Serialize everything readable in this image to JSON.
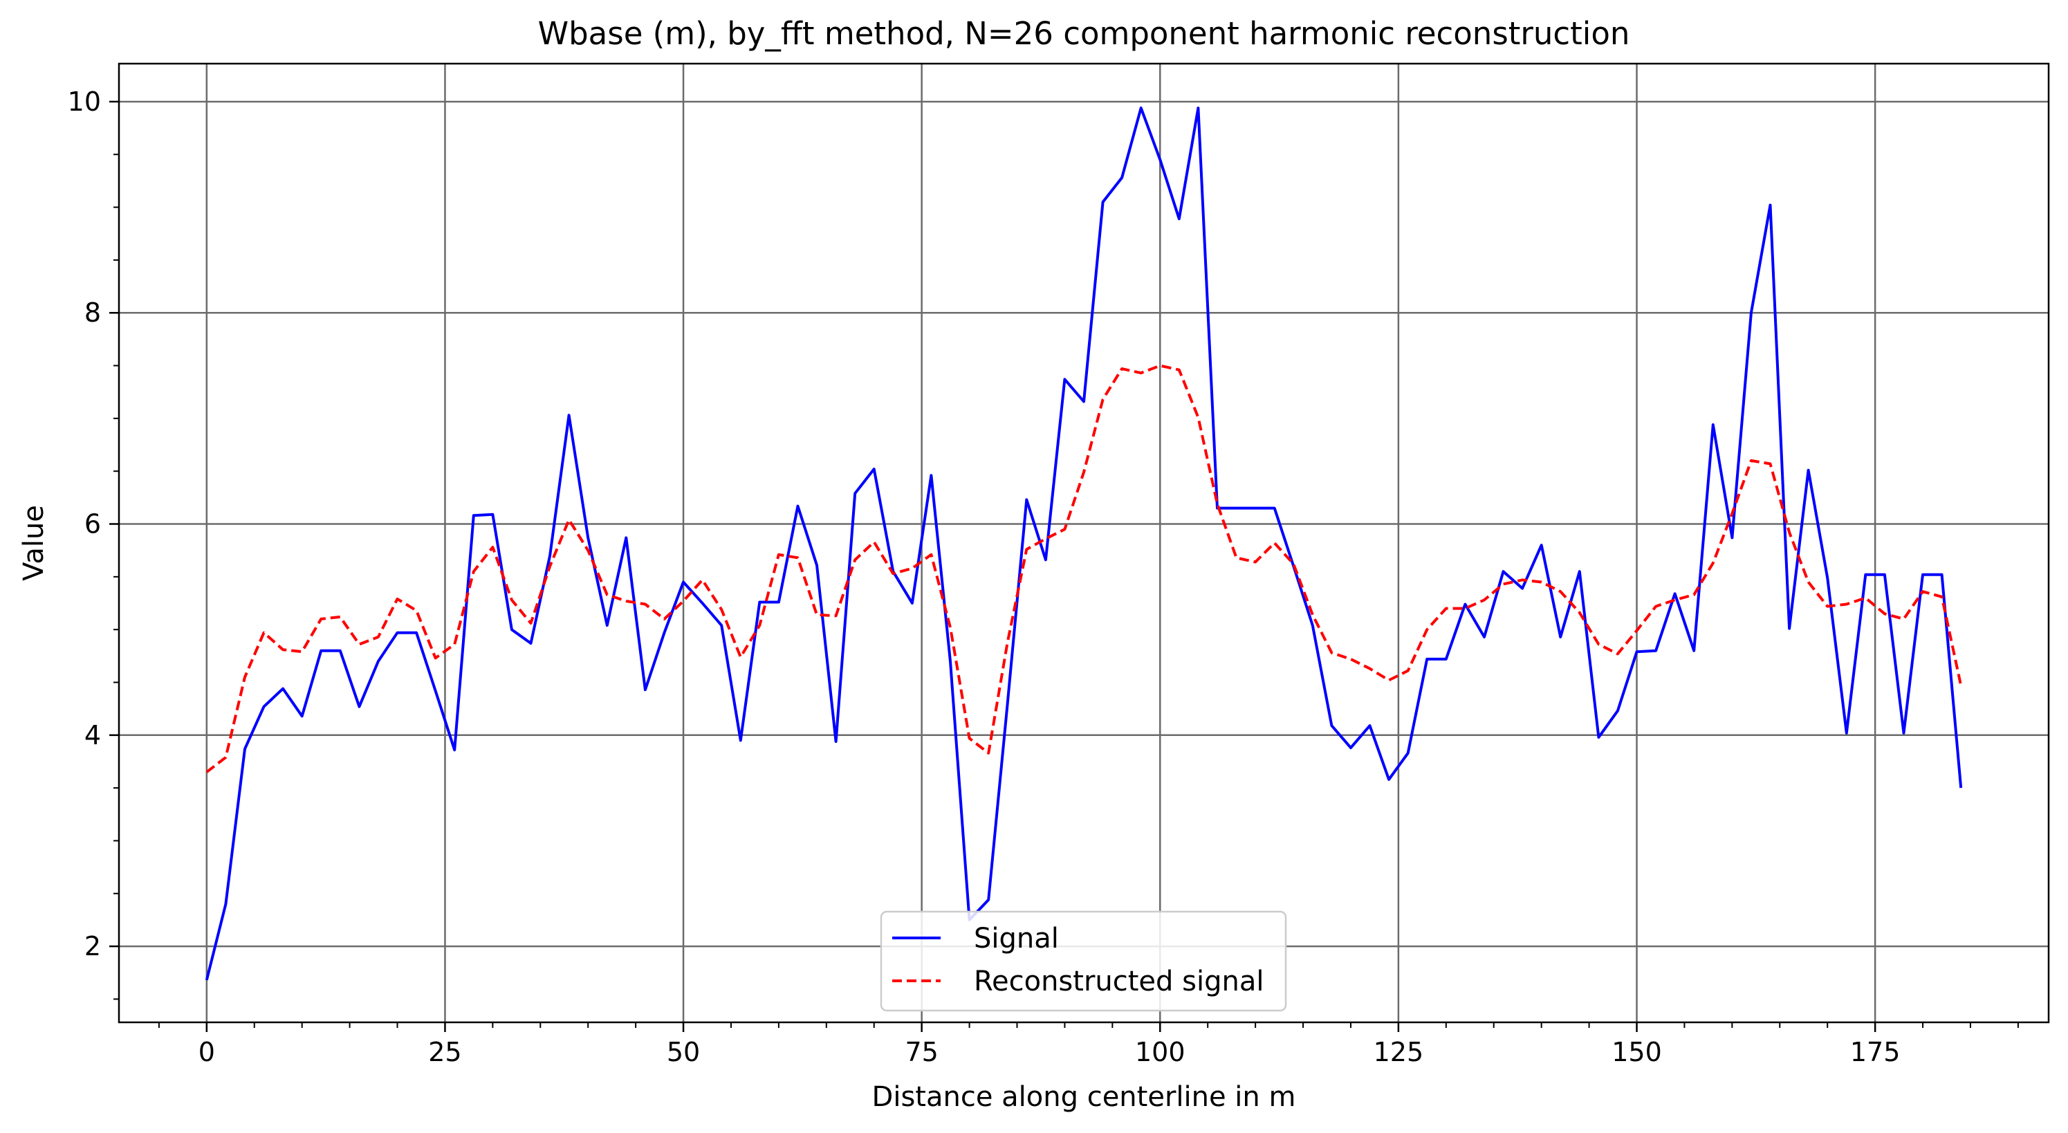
{
  "chart_data": {
    "type": "line",
    "title": "Wbase (m), by_fft method, N=26 component harmonic reconstruction",
    "xlabel": "Distance along centerline in m",
    "ylabel": "Value",
    "xlim": [
      -9.2,
      193.2
    ],
    "ylim": [
      1.28,
      10.36
    ],
    "xticks": [
      0,
      25,
      50,
      75,
      100,
      125,
      150,
      175
    ],
    "xtick_labels": [
      "0",
      "25",
      "50",
      "75",
      "100",
      "125",
      "150",
      "175"
    ],
    "yticks": [
      2,
      4,
      6,
      8,
      10
    ],
    "ytick_labels": [
      "2",
      "4",
      "6",
      "8",
      "10"
    ],
    "x_minor_step": 5,
    "y_minor_step": 0.5,
    "grid": true,
    "legend_position": "lower center",
    "x": [
      0,
      2,
      4,
      6,
      8,
      10,
      12,
      14,
      16,
      18,
      20,
      22,
      24,
      26,
      28,
      30,
      32,
      34,
      36,
      38,
      40,
      42,
      44,
      46,
      48,
      50,
      52,
      54,
      56,
      58,
      60,
      62,
      64,
      66,
      68,
      70,
      72,
      74,
      76,
      78,
      80,
      82,
      84,
      86,
      88,
      90,
      92,
      94,
      96,
      98,
      100,
      102,
      104,
      106,
      108,
      110,
      112,
      114,
      116,
      118,
      120,
      122,
      124,
      126,
      128,
      130,
      132,
      134,
      136,
      138,
      140,
      142,
      144,
      146,
      148,
      150,
      152,
      154,
      156,
      158,
      160,
      162,
      164,
      166,
      168,
      170,
      172,
      174,
      176,
      178,
      180,
      182,
      184
    ],
    "series": [
      {
        "name": "Signal",
        "color": "#0000ff",
        "dash": "solid",
        "values": [
          1.68,
          2.4,
          3.87,
          4.27,
          4.44,
          4.18,
          4.8,
          4.8,
          4.27,
          4.7,
          4.97,
          4.97,
          4.42,
          3.86,
          6.08,
          6.09,
          5.0,
          4.87,
          5.7,
          7.03,
          5.87,
          5.04,
          5.87,
          4.43,
          4.97,
          5.45,
          5.25,
          5.04,
          3.95,
          5.26,
          5.26,
          6.17,
          5.61,
          3.94,
          6.29,
          6.52,
          5.55,
          5.25,
          6.46,
          4.7,
          2.25,
          2.44,
          4.3,
          6.23,
          5.66,
          7.37,
          7.16,
          9.05,
          9.28,
          9.94,
          9.45,
          8.89,
          9.94,
          6.15,
          6.15,
          6.15,
          6.15,
          5.6,
          5.04,
          4.09,
          3.88,
          4.09,
          3.58,
          3.83,
          4.72,
          4.72,
          5.24,
          4.93,
          5.55,
          5.39,
          5.8,
          4.93,
          5.55,
          3.98,
          4.23,
          4.79,
          4.8,
          5.34,
          4.8,
          6.94,
          5.87,
          8.0,
          9.02,
          5.01,
          6.51,
          5.49,
          4.02,
          5.52,
          5.52,
          4.02,
          5.52,
          5.52,
          3.5
        ]
      },
      {
        "name": "Reconstructed signal",
        "color": "#ff0000",
        "dash": "dashed",
        "values": [
          3.65,
          3.79,
          4.55,
          4.97,
          4.81,
          4.79,
          5.1,
          5.12,
          4.86,
          4.93,
          5.29,
          5.18,
          4.73,
          4.86,
          5.55,
          5.78,
          5.28,
          5.06,
          5.6,
          6.04,
          5.75,
          5.33,
          5.27,
          5.24,
          5.1,
          5.27,
          5.47,
          5.19,
          4.74,
          5.04,
          5.71,
          5.68,
          5.14,
          5.13,
          5.66,
          5.83,
          5.53,
          5.58,
          5.71,
          5.02,
          3.97,
          3.83,
          4.88,
          5.76,
          5.86,
          5.95,
          6.49,
          7.18,
          7.47,
          7.43,
          7.5,
          7.46,
          7.01,
          6.19,
          5.68,
          5.64,
          5.82,
          5.62,
          5.14,
          4.78,
          4.72,
          4.63,
          4.52,
          4.61,
          5.0,
          5.2,
          5.2,
          5.28,
          5.43,
          5.47,
          5.45,
          5.36,
          5.16,
          4.86,
          4.77,
          4.99,
          5.22,
          5.28,
          5.33,
          5.63,
          6.1,
          6.6,
          6.57,
          5.92,
          5.45,
          5.22,
          5.24,
          5.3,
          5.15,
          5.1,
          5.36,
          5.31,
          4.47
        ]
      }
    ]
  }
}
